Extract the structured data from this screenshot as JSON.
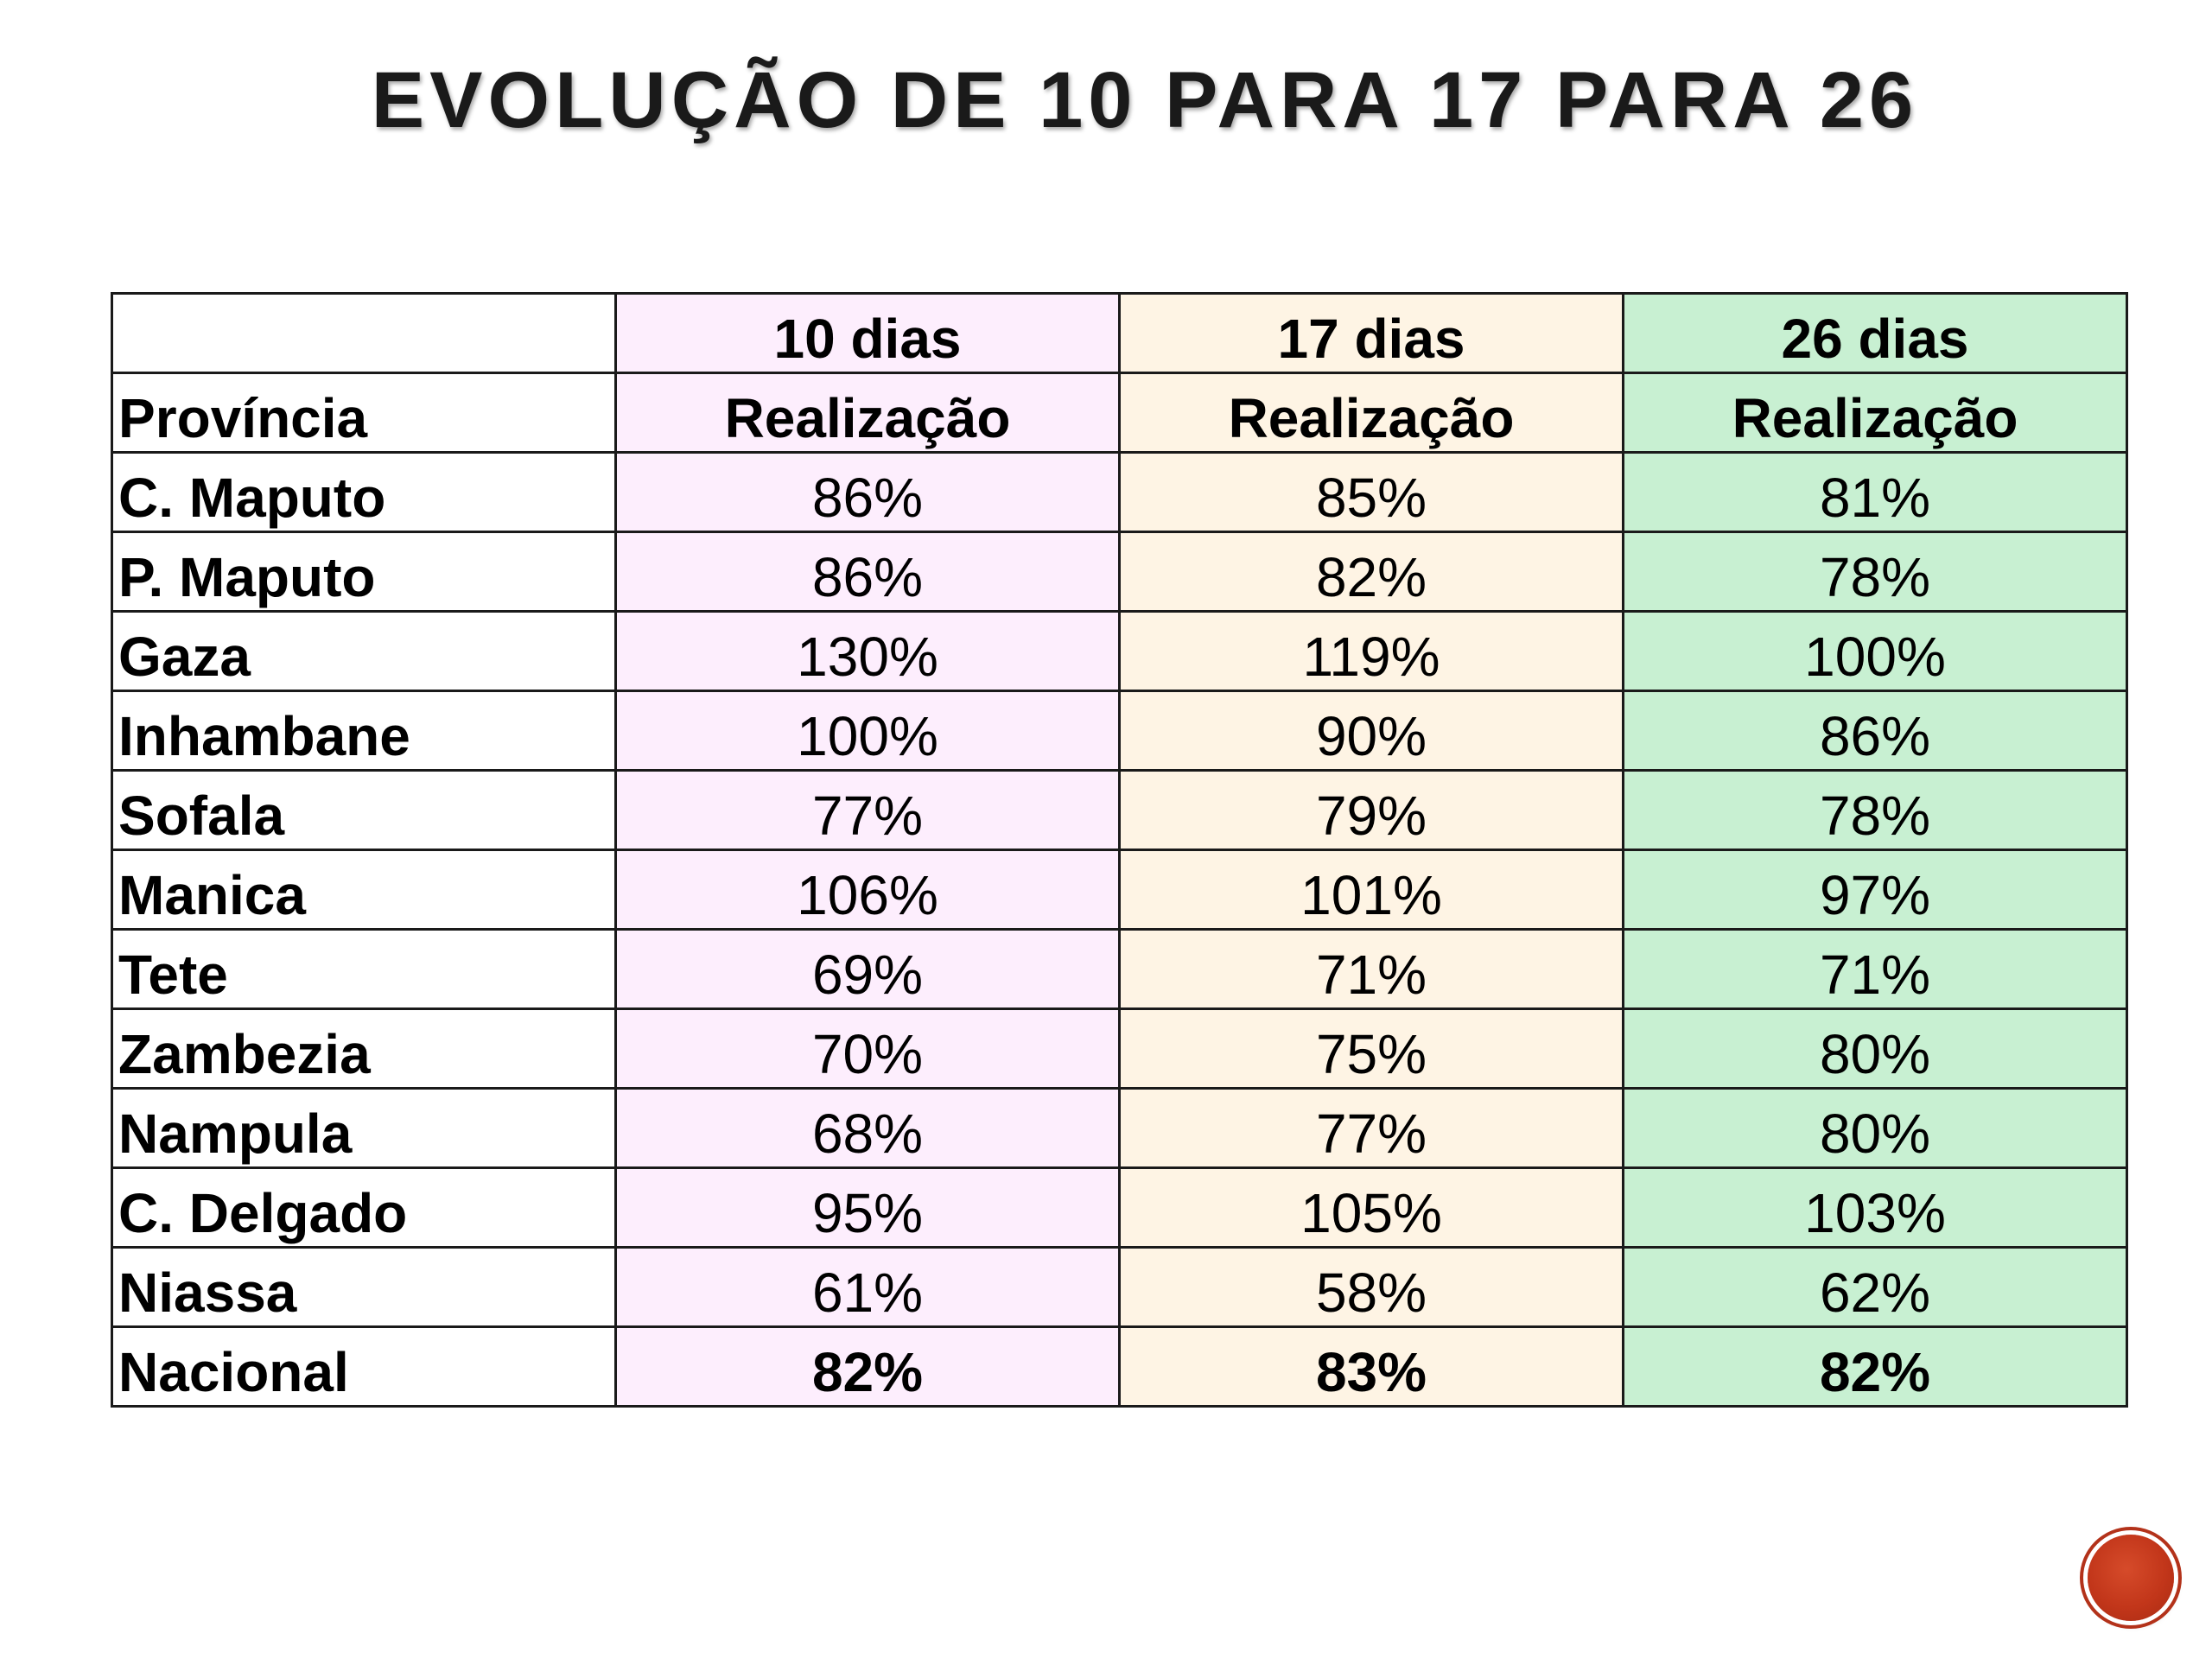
{
  "title": "EVOLUÇÃO DE 10 PARA 17 PARA 26",
  "table": {
    "header_periods": [
      "10 dias",
      "17 dias",
      "26 dias"
    ],
    "header_row2": {
      "first": "Província",
      "metric": "Realização"
    },
    "rows": [
      {
        "provincia": "C. Maputo",
        "d10": "86%",
        "d17": "85%",
        "d26": "81%"
      },
      {
        "provincia": "P. Maputo",
        "d10": "86%",
        "d17": "82%",
        "d26": "78%"
      },
      {
        "provincia": "Gaza",
        "d10": "130%",
        "d17": "119%",
        "d26": "100%"
      },
      {
        "provincia": "Inhambane",
        "d10": "100%",
        "d17": "90%",
        "d26": "86%"
      },
      {
        "provincia": "Sofala",
        "d10": "77%",
        "d17": "79%",
        "d26": "78%"
      },
      {
        "provincia": "Manica",
        "d10": "106%",
        "d17": "101%",
        "d26": "97%"
      },
      {
        "provincia": "Tete",
        "d10": "69%",
        "d17": "71%",
        "d26": "71%"
      },
      {
        "provincia": "Zambezia",
        "d10": "70%",
        "d17": "75%",
        "d26": "80%"
      },
      {
        "provincia": "Nampula",
        "d10": "68%",
        "d17": "77%",
        "d26": "80%"
      },
      {
        "provincia": "C. Delgado",
        "d10": "95%",
        "d17": "105%",
        "d26": "103%"
      },
      {
        "provincia": "Niassa",
        "d10": "61%",
        "d17": "58%",
        "d26": "62%"
      }
    ],
    "total": {
      "provincia": "Nacional",
      "d10": "82%",
      "d17": "83%",
      "d26": "82%"
    }
  },
  "colors": {
    "col_10_dias": "#fdeefd",
    "col_17_dias": "#fef4e4",
    "col_26_dias": "#c8f0d2",
    "nav_button": "#c2361a"
  },
  "icons": {
    "nav_button": "circle-button-icon"
  }
}
